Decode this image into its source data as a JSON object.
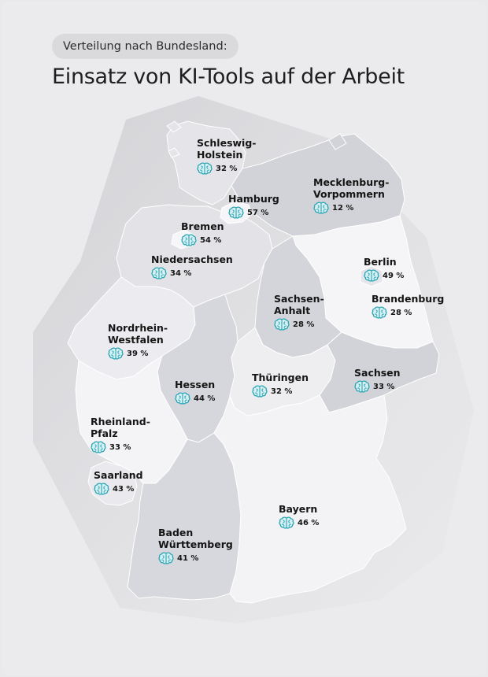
{
  "header": {
    "subtitle": "Verteilung nach Bundesland:",
    "title": "Einsatz von KI-Tools auf der Arbeit"
  },
  "icon": "brain-icon",
  "colors": {
    "background": "#ebebed",
    "accent": "#2aa4b4",
    "states_light": "#f6f6f8",
    "states_mid": "#e4e4e8",
    "states_dark": "#cfd0d5"
  },
  "states": [
    {
      "id": "schleswig-holstein",
      "name": "Schleswig-\nHolstein",
      "value": "32 %"
    },
    {
      "id": "hamburg",
      "name": "Hamburg",
      "value": "57 %"
    },
    {
      "id": "mecklenburg-vorpommern",
      "name": "Mecklenburg-\nVorpommern",
      "value": "12 %"
    },
    {
      "id": "bremen",
      "name": "Bremen",
      "value": "54 %"
    },
    {
      "id": "niedersachsen",
      "name": "Niedersachsen",
      "value": "34 %"
    },
    {
      "id": "berlin",
      "name": "Berlin",
      "value": "49 %"
    },
    {
      "id": "sachsen-anhalt",
      "name": "Sachsen-\nAnhalt",
      "value": "28 %"
    },
    {
      "id": "brandenburg",
      "name": "Brandenburg",
      "value": "28 %"
    },
    {
      "id": "nordrhein-westfalen",
      "name": "Nordrhein-\nWestfalen",
      "value": "39 %"
    },
    {
      "id": "hessen",
      "name": "Hessen",
      "value": "44 %"
    },
    {
      "id": "thueringen",
      "name": "Thüringen",
      "value": "32 %"
    },
    {
      "id": "sachsen",
      "name": "Sachsen",
      "value": "33 %"
    },
    {
      "id": "rheinland-pfalz",
      "name": "Rheinland-\nPfalz",
      "value": "33 %"
    },
    {
      "id": "saarland",
      "name": "Saarland",
      "value": "43 %"
    },
    {
      "id": "bayern",
      "name": "Bayern",
      "value": "46 %"
    },
    {
      "id": "baden-wuerttemberg",
      "name": "Baden\nWürttemberg",
      "value": "41 %"
    }
  ]
}
